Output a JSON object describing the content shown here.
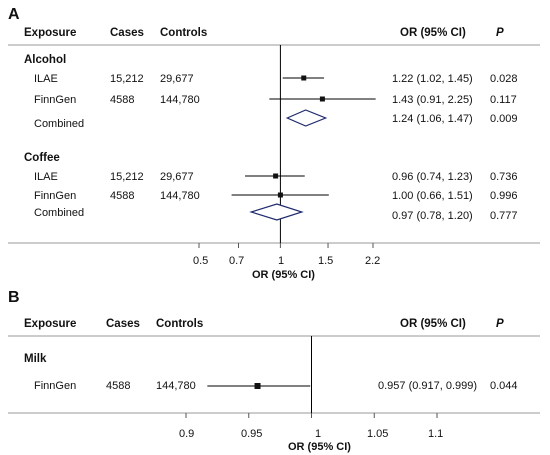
{
  "panels": [
    {
      "label": "A",
      "headers": {
        "exposure": "Exposure",
        "cases": "Cases",
        "controls": "Controls",
        "or_ci": "OR (95% CI)",
        "p": "P"
      },
      "axis_title": "OR (95% CI)",
      "groups": [
        {
          "name": "Alcohol",
          "rows": [
            {
              "label": "ILAE",
              "cases": "15,212",
              "controls": "29,677",
              "or_text": "1.22 (1.02, 1.45)",
              "p": "0.028"
            },
            {
              "label": "FinnGen",
              "cases": "4588",
              "controls": "144,780",
              "or_text": "1.43 (0.91, 2.25)",
              "p": "0.117"
            },
            {
              "label": "Combined",
              "cases": "",
              "controls": "",
              "or_text": "1.24 (1.06, 1.47)",
              "p": "0.009"
            }
          ]
        },
        {
          "name": "Coffee",
          "rows": [
            {
              "label": "ILAE",
              "cases": "15,212",
              "controls": "29,677",
              "or_text": "0.96 (0.74, 1.23)",
              "p": "0.736"
            },
            {
              "label": "FinnGen",
              "cases": "4588",
              "controls": "144,780",
              "or_text": "1.00 (0.66, 1.51)",
              "p": "0.996"
            },
            {
              "label": "Combined",
              "cases": "",
              "controls": "",
              "or_text": "0.97 (0.78, 1.20)",
              "p": "0.777"
            }
          ]
        }
      ],
      "ticks": [
        "0.5",
        "0.7",
        "1",
        "1.5",
        "2.2"
      ]
    },
    {
      "label": "B",
      "headers": {
        "exposure": "Exposure",
        "cases": "Cases",
        "controls": "Controls",
        "or_ci": "OR (95% CI)",
        "p": "P"
      },
      "axis_title": "OR (95% CI)",
      "groups": [
        {
          "name": "Milk",
          "rows": [
            {
              "label": "FinnGen",
              "cases": "4588",
              "controls": "144,780",
              "or_text": "0.957 (0.917,  0.999)",
              "p": "0.044"
            }
          ]
        }
      ],
      "ticks": [
        "0.9",
        "0.95",
        "1",
        "1.05",
        "1.1"
      ]
    }
  ],
  "chart_data": [
    {
      "type": "forest",
      "scale": "log",
      "xlabel": "OR (95% CI)",
      "xticks": [
        0.5,
        0.7,
        1,
        1.5,
        2.2
      ],
      "reference_line": 1,
      "marker_color": "#111111",
      "diamond_color": "#1f2a6b",
      "estimates": [
        {
          "group": "Alcohol",
          "label": "ILAE",
          "or": 1.22,
          "lower": 1.02,
          "upper": 1.45,
          "marker": "square"
        },
        {
          "group": "Alcohol",
          "label": "FinnGen",
          "or": 1.43,
          "lower": 0.91,
          "upper": 2.25,
          "marker": "square"
        },
        {
          "group": "Alcohol",
          "label": "Combined",
          "or": 1.24,
          "lower": 1.06,
          "upper": 1.47,
          "marker": "diamond"
        },
        {
          "group": "Coffee",
          "label": "ILAE",
          "or": 0.96,
          "lower": 0.74,
          "upper": 1.23,
          "marker": "square"
        },
        {
          "group": "Coffee",
          "label": "FinnGen",
          "or": 1.0,
          "lower": 0.66,
          "upper": 1.51,
          "marker": "square"
        },
        {
          "group": "Coffee",
          "label": "Combined",
          "or": 0.97,
          "lower": 0.78,
          "upper": 1.2,
          "marker": "diamond"
        }
      ]
    },
    {
      "type": "forest",
      "scale": "linear",
      "xlabel": "OR (95% CI)",
      "xticks": [
        0.9,
        0.95,
        1,
        1.05,
        1.1
      ],
      "reference_line": 1,
      "marker_color": "#111111",
      "estimates": [
        {
          "group": "Milk",
          "label": "FinnGen",
          "or": 0.957,
          "lower": 0.917,
          "upper": 0.999,
          "marker": "square"
        }
      ]
    }
  ]
}
